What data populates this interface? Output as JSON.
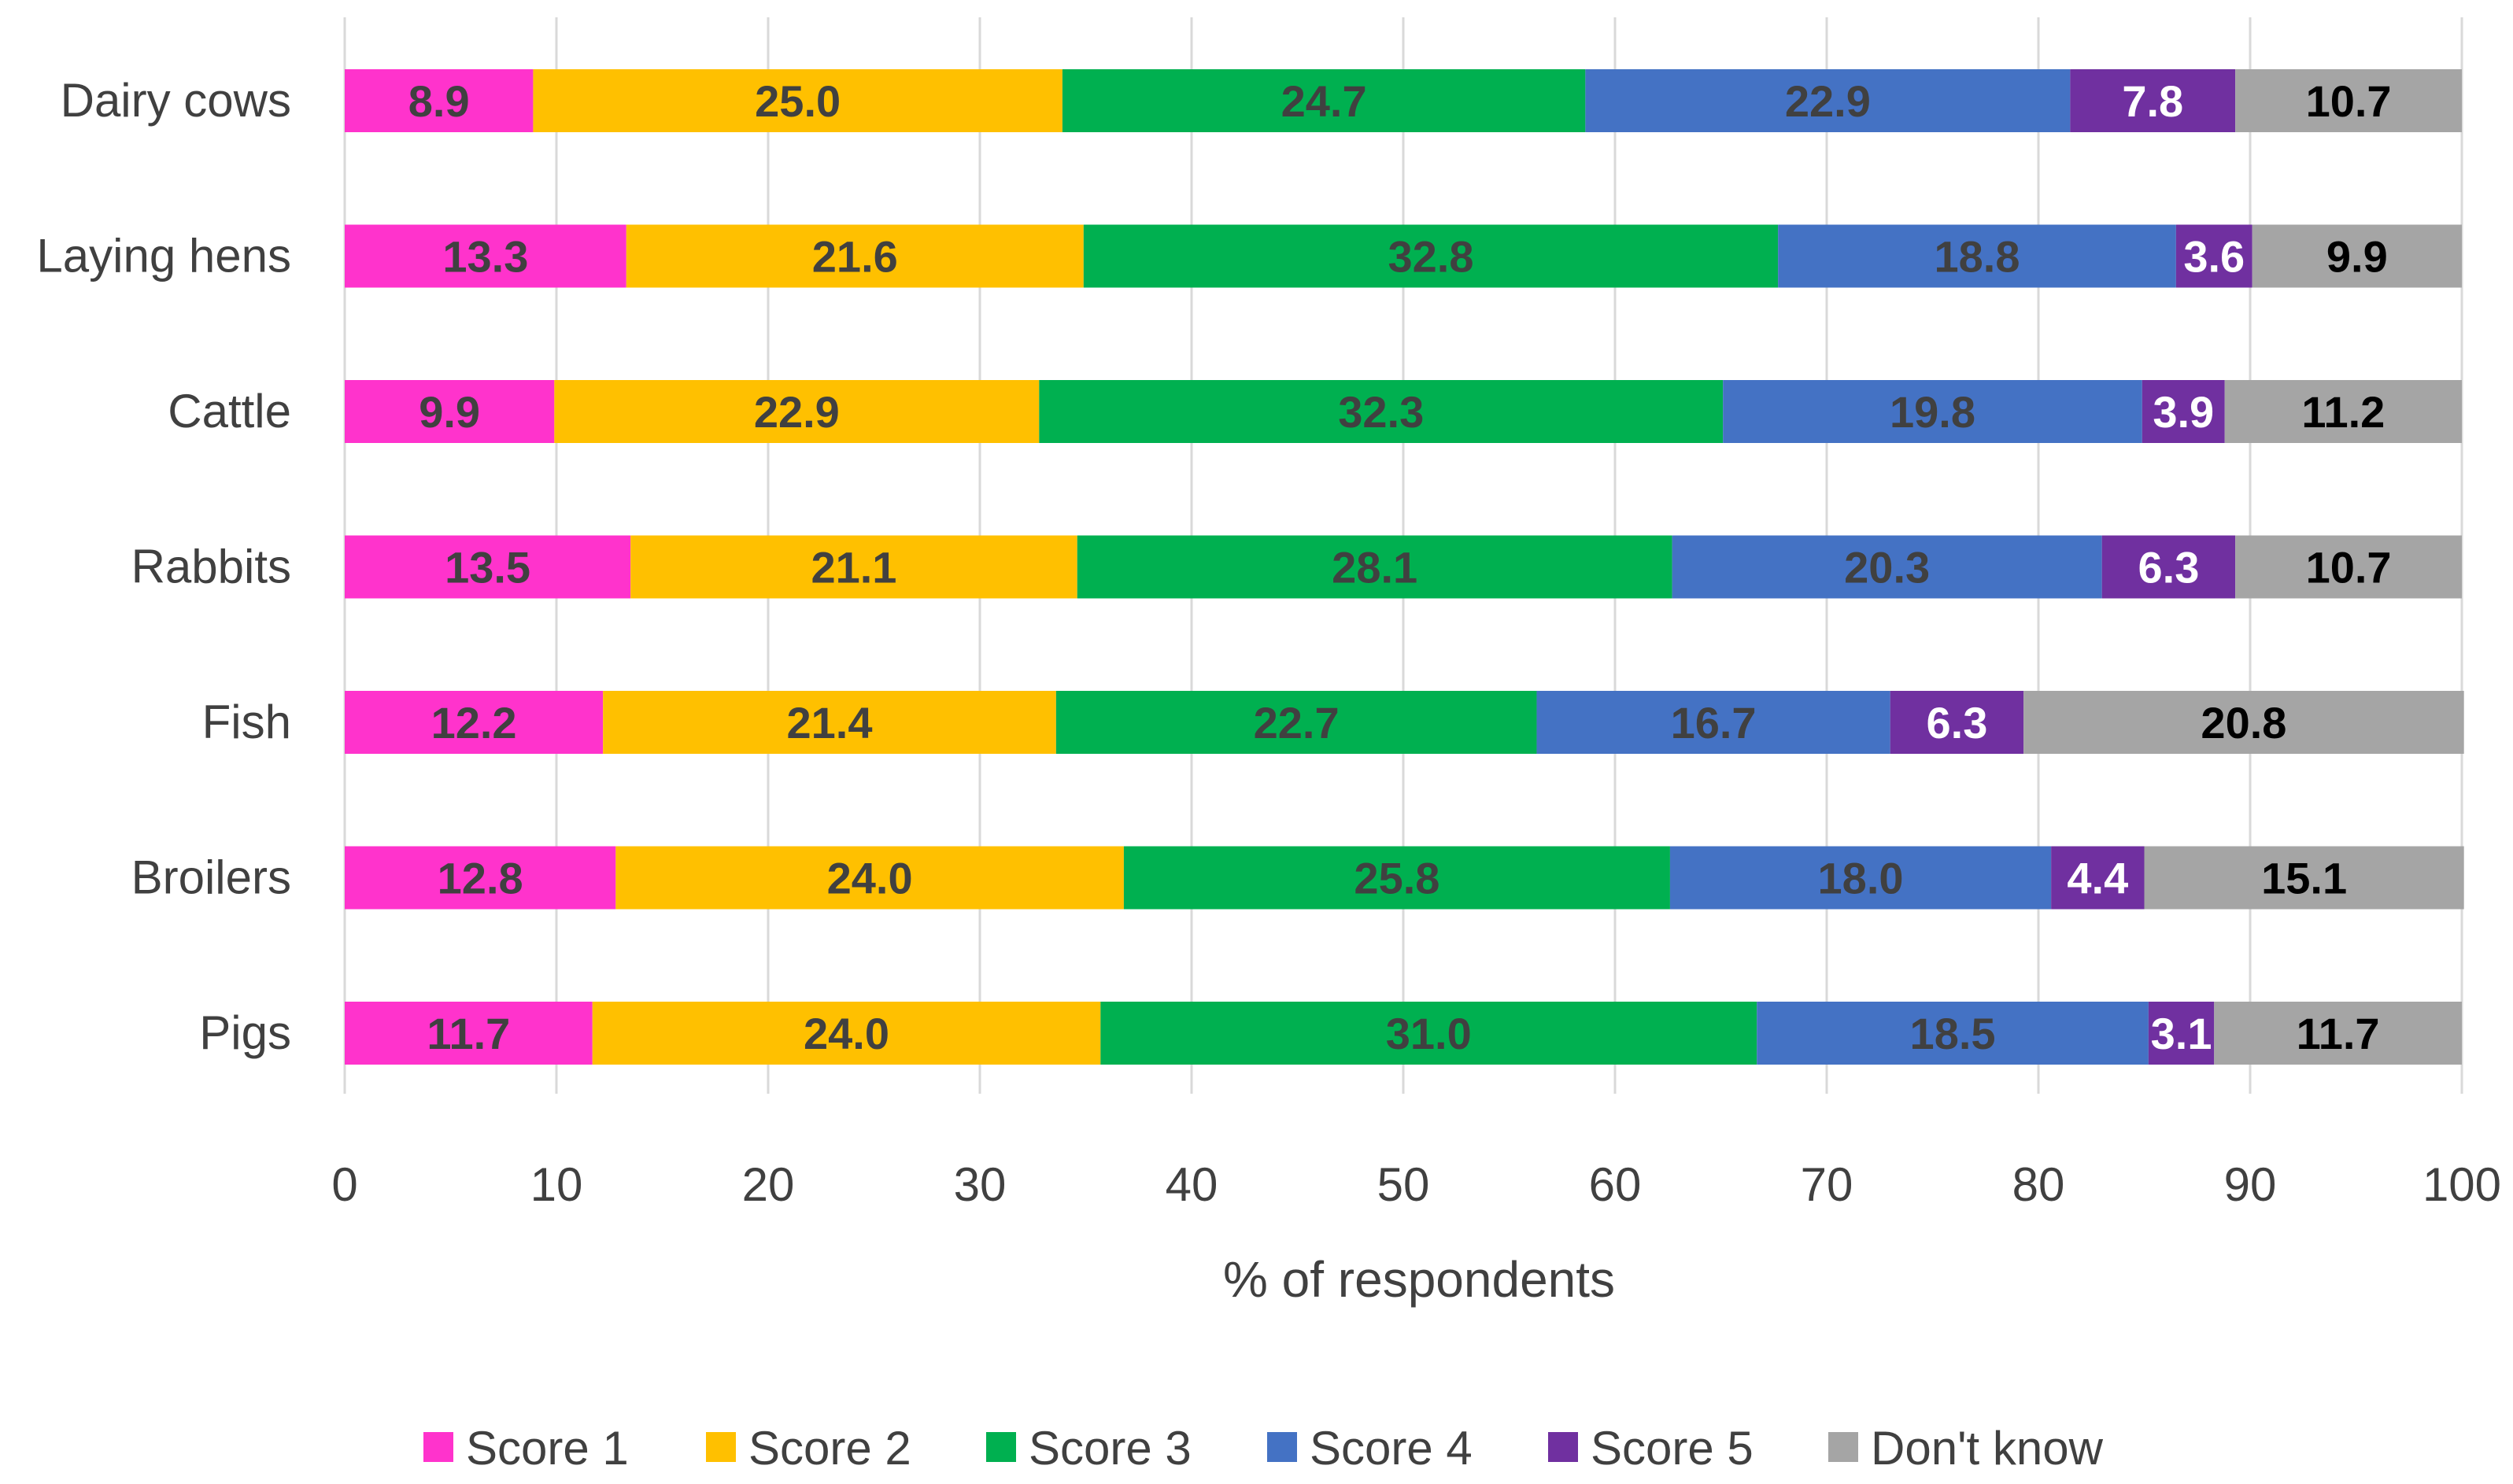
{
  "chart_data": {
    "type": "bar",
    "orientation": "horizontal",
    "stacked": true,
    "title": "",
    "xlabel": "% of respondents",
    "ylabel": "",
    "xlim": [
      0,
      100
    ],
    "x_ticks": [
      "0",
      "10",
      "20",
      "30",
      "40",
      "50",
      "60",
      "70",
      "80",
      "90",
      "100"
    ],
    "grid": "vertical",
    "legend_position": "bottom",
    "categories": [
      "Dairy cows",
      "Laying hens",
      "Cattle",
      "Rabbits",
      "Fish",
      "Broilers",
      "Pigs"
    ],
    "series": [
      {
        "name": "Score 1",
        "color": "#FF33CC",
        "label_color": "#404040",
        "values": [
          8.9,
          13.3,
          9.9,
          13.5,
          12.2,
          12.8,
          11.7
        ],
        "labels": [
          "8.9",
          "13.3",
          "9.9",
          "13.5",
          "12.2",
          "12.8",
          "11.7"
        ]
      },
      {
        "name": "Score 2",
        "color": "#FFC000",
        "label_color": "#404040",
        "values": [
          25.0,
          21.6,
          22.9,
          21.1,
          21.4,
          24.0,
          24.0
        ],
        "labels": [
          "25.0",
          "21.6",
          "22.9",
          "21.1",
          "21.4",
          "24.0",
          "24.0"
        ]
      },
      {
        "name": "Score 3",
        "color": "#00B050",
        "label_color": "#404040",
        "values": [
          24.7,
          32.8,
          32.3,
          28.1,
          22.7,
          25.8,
          31.0
        ],
        "labels": [
          "24.7",
          "32.8",
          "32.3",
          "28.1",
          "22.7",
          "25.8",
          "31.0"
        ]
      },
      {
        "name": "Score 4",
        "color": "#4472C4",
        "label_color": "#404040",
        "values": [
          22.9,
          18.8,
          19.8,
          20.3,
          16.7,
          18.0,
          18.5
        ],
        "labels": [
          "22.9",
          "18.8",
          "19.8",
          "20.3",
          "16.7",
          "18.0",
          "18.5"
        ]
      },
      {
        "name": "Score 5",
        "color": "#7030A0",
        "label_color": "#FFFFFF",
        "values": [
          7.8,
          3.6,
          3.9,
          6.3,
          6.3,
          4.4,
          3.1
        ],
        "labels": [
          "7.8",
          "3.6",
          "3.9",
          "6.3",
          "6.3",
          "4.4",
          "3.1"
        ]
      },
      {
        "name": "Don't know",
        "color": "#A5A5A5",
        "label_color": "#000000",
        "values": [
          10.7,
          9.9,
          11.2,
          10.7,
          20.8,
          15.1,
          11.7
        ],
        "labels": [
          "10.7",
          "9.9",
          "11.2",
          "10.7",
          "20.8",
          "15.1",
          "11.7"
        ]
      }
    ]
  }
}
